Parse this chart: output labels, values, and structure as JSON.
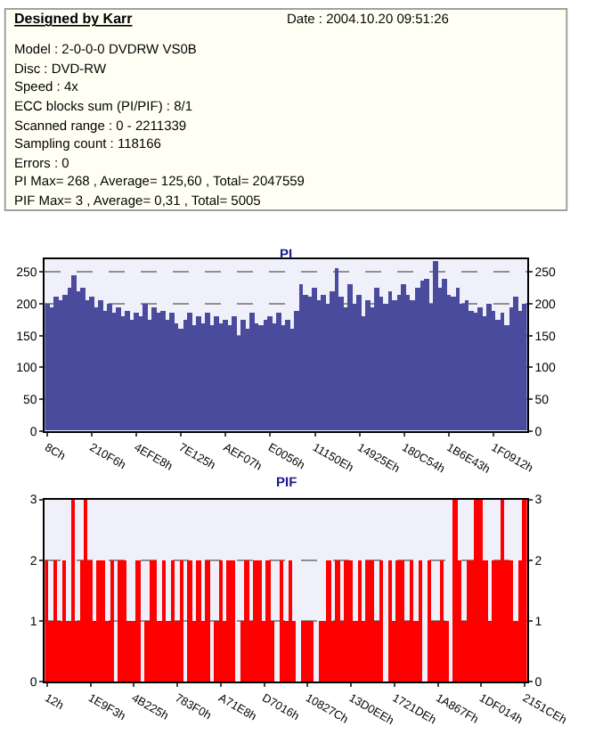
{
  "chart_data": [
    {
      "type": "other",
      "title": "Designed by Karr",
      "subtitle": "Date : 2004.10.20 09:51:26",
      "annotations": [
        "Model : 2-0-0-0 DVDRW VS0B",
        "Disc : DVD-RW",
        "Speed : 4x",
        "ECC blocks sum (PI/PIF) : 8/1",
        "Scanned range : 0 - 2211339",
        "Sampling count : 118166",
        "Errors : 0",
        "PI Max= 268 , Average= 125,60 , Total= 2047559",
        "PIF Max= 3 , Average= 0,31 , Total= 5005"
      ]
    },
    {
      "type": "bar",
      "title": "PI",
      "color": "#4b4b9e",
      "grid": "y",
      "ylim": [
        0,
        270
      ],
      "yticks": [
        0,
        50,
        100,
        150,
        200,
        250
      ],
      "y2lim": [
        0,
        270
      ],
      "y2ticks": [
        0,
        50,
        100,
        150,
        200,
        250
      ],
      "categories": [
        "8Ch",
        null,
        null,
        null,
        null,
        null,
        null,
        null,
        null,
        null,
        "210F6h",
        null,
        null,
        null,
        null,
        null,
        null,
        null,
        null,
        null,
        "4EFE8h",
        null,
        null,
        null,
        null,
        null,
        null,
        null,
        null,
        null,
        "7E125h",
        null,
        null,
        null,
        null,
        null,
        null,
        null,
        null,
        null,
        "AEF07h",
        null,
        null,
        null,
        null,
        null,
        null,
        null,
        null,
        null,
        "E0056h",
        null,
        null,
        null,
        null,
        null,
        null,
        null,
        null,
        null,
        "11150Eh",
        null,
        null,
        null,
        null,
        null,
        null,
        null,
        null,
        null,
        "14925Eh",
        null,
        null,
        null,
        null,
        null,
        null,
        null,
        null,
        null,
        "180C54h",
        null,
        null,
        null,
        null,
        null,
        null,
        null,
        null,
        null,
        "1B6E43h",
        null,
        null,
        null,
        null,
        null,
        null,
        null,
        null,
        null,
        "1F0912h",
        null,
        null,
        null,
        null,
        null,
        null,
        null
      ],
      "values": [
        200,
        195,
        210,
        205,
        215,
        225,
        245,
        220,
        225,
        205,
        210,
        195,
        205,
        190,
        200,
        185,
        195,
        180,
        190,
        175,
        185,
        180,
        200,
        175,
        195,
        185,
        190,
        175,
        185,
        170,
        160,
        175,
        185,
        165,
        180,
        170,
        185,
        165,
        180,
        170,
        175,
        165,
        180,
        150,
        175,
        160,
        185,
        170,
        165,
        175,
        180,
        170,
        185,
        165,
        175,
        160,
        190,
        230,
        215,
        210,
        225,
        205,
        215,
        200,
        220,
        255,
        210,
        195,
        230,
        200,
        215,
        180,
        205,
        195,
        225,
        210,
        200,
        220,
        205,
        215,
        230,
        215,
        205,
        225,
        235,
        240,
        200,
        268,
        225,
        240,
        215,
        210,
        225,
        200,
        205,
        190,
        185,
        195,
        180,
        200,
        190,
        175,
        185,
        165,
        195,
        210,
        190,
        200
      ]
    },
    {
      "type": "bar",
      "title": "PIF",
      "color": "#ff0000",
      "grid": "y",
      "ylim": [
        0,
        3
      ],
      "yticks": [
        0,
        1,
        2,
        3
      ],
      "y2lim": [
        0,
        3
      ],
      "y2ticks": [
        0,
        1,
        2,
        3
      ],
      "categories": [
        "12h",
        null,
        null,
        null,
        null,
        null,
        null,
        null,
        null,
        null,
        "1E9F3h",
        null,
        null,
        null,
        null,
        null,
        null,
        null,
        null,
        null,
        "4B225h",
        null,
        null,
        null,
        null,
        null,
        null,
        null,
        null,
        null,
        "783F0h",
        null,
        null,
        null,
        null,
        null,
        null,
        null,
        null,
        null,
        "A71E8h",
        null,
        null,
        null,
        null,
        null,
        null,
        null,
        null,
        null,
        "D7016h",
        null,
        null,
        null,
        null,
        null,
        null,
        null,
        null,
        null,
        "10827Ch",
        null,
        null,
        null,
        null,
        null,
        null,
        null,
        null,
        null,
        "13D0EEh",
        null,
        null,
        null,
        null,
        null,
        null,
        null,
        null,
        null,
        "1721DEh",
        null,
        null,
        null,
        null,
        null,
        null,
        null,
        null,
        null,
        "1A867Fh",
        null,
        null,
        null,
        null,
        null,
        null,
        null,
        null,
        null,
        "1DF014h",
        null,
        null,
        null,
        null,
        null,
        null,
        null,
        null,
        null,
        "2151CEh"
      ],
      "values": [
        2,
        1,
        2,
        1,
        2,
        1,
        3,
        1,
        2,
        3,
        2,
        1,
        2,
        2,
        1,
        2,
        0,
        2,
        2,
        1,
        1,
        2,
        0,
        1,
        2,
        2,
        1,
        2,
        1,
        2,
        1,
        2,
        0,
        2,
        1,
        2,
        1,
        2,
        0,
        1,
        2,
        1,
        2,
        2,
        0,
        1,
        2,
        1,
        2,
        2,
        1,
        2,
        1,
        0,
        2,
        1,
        2,
        1,
        0,
        1,
        1,
        1,
        0,
        1,
        1,
        2,
        1,
        2,
        1,
        2,
        2,
        1,
        2,
        1,
        2,
        2,
        1,
        2,
        0,
        2,
        1,
        2,
        2,
        1,
        2,
        1,
        2,
        0,
        2,
        1,
        1,
        2,
        1,
        0,
        3,
        2,
        1,
        2,
        2,
        3,
        3,
        2,
        1,
        2,
        2,
        3,
        2,
        2,
        1,
        2,
        3
      ]
    }
  ]
}
